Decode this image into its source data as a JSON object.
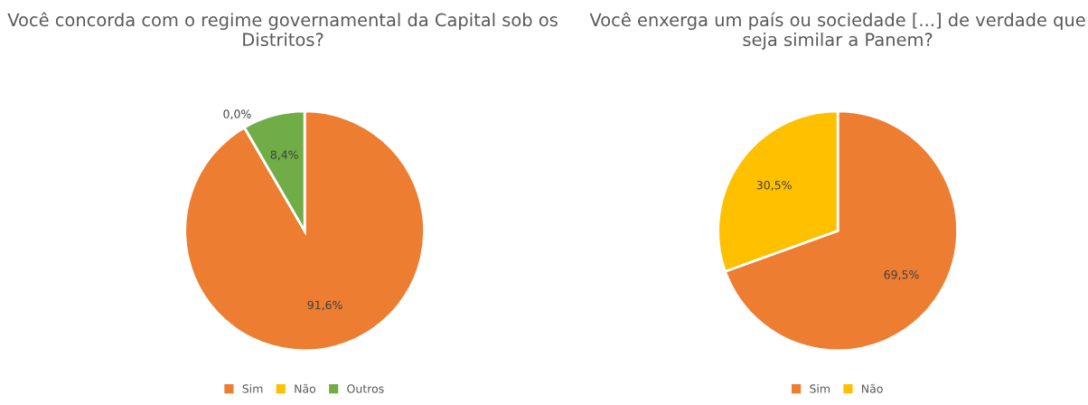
{
  "chart_data": [
    {
      "type": "pie",
      "title": "Você concorda com o regime governamental da Capital sob os Distritos?",
      "categories": [
        "Sim",
        "Não",
        "Outros"
      ],
      "values": [
        91.6,
        0.0,
        8.4
      ],
      "colors": [
        "#ed7d31",
        "#ffc000",
        "#70ad47"
      ],
      "value_labels": [
        "91,6%",
        "0,0%",
        "8,4%"
      ],
      "legend": "bottom"
    },
    {
      "type": "pie",
      "title": "Você enxerga um país ou sociedade [...] de verdade que seja similar a Panem?",
      "categories": [
        "Sim",
        "Não"
      ],
      "values": [
        69.5,
        30.5
      ],
      "colors": [
        "#ed7d31",
        "#ffc000"
      ],
      "value_labels": [
        "69,5%",
        "30,5%"
      ],
      "legend": "bottom"
    }
  ]
}
